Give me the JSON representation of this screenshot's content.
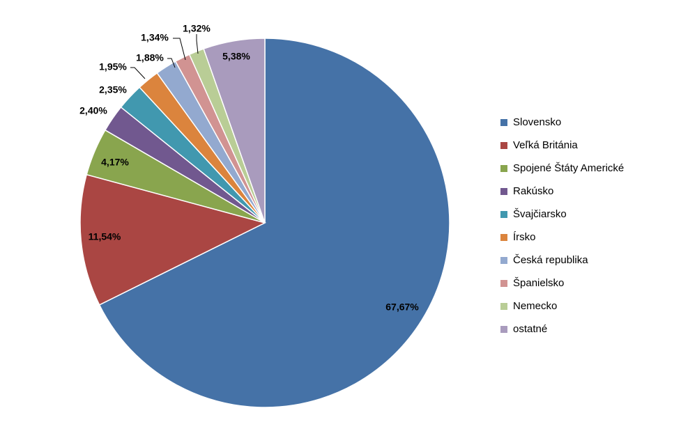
{
  "chart_data": {
    "type": "pie",
    "title": "",
    "legend_position": "right",
    "series": [
      {
        "name": "Slovensko",
        "value": 67.67,
        "label": "67,67%",
        "color": "#4572A7"
      },
      {
        "name": "Veľká Británia",
        "value": 11.54,
        "label": "11,54%",
        "color": "#AA4643"
      },
      {
        "name": "Spojené Štáty Americké",
        "value": 4.17,
        "label": "4,17%",
        "color": "#89A54E"
      },
      {
        "name": "Rakúsko",
        "value": 2.4,
        "label": "2,40%",
        "color": "#71588F"
      },
      {
        "name": "Švajčiarsko",
        "value": 2.35,
        "label": "2,35%",
        "color": "#4198AF"
      },
      {
        "name": "Írsko",
        "value": 1.95,
        "label": "1,95%",
        "color": "#DB843D"
      },
      {
        "name": "Česká republika",
        "value": 1.88,
        "label": "1,88%",
        "color": "#93A9CF"
      },
      {
        "name": "Španielsko",
        "value": 1.34,
        "label": "1,34%",
        "color": "#D19392"
      },
      {
        "name": "Nemecko",
        "value": 1.32,
        "label": "1,32%",
        "color": "#B9CD96"
      },
      {
        "name": "ostatné",
        "value": 5.38,
        "label": "5,38%",
        "color": "#A99BBD"
      }
    ]
  }
}
